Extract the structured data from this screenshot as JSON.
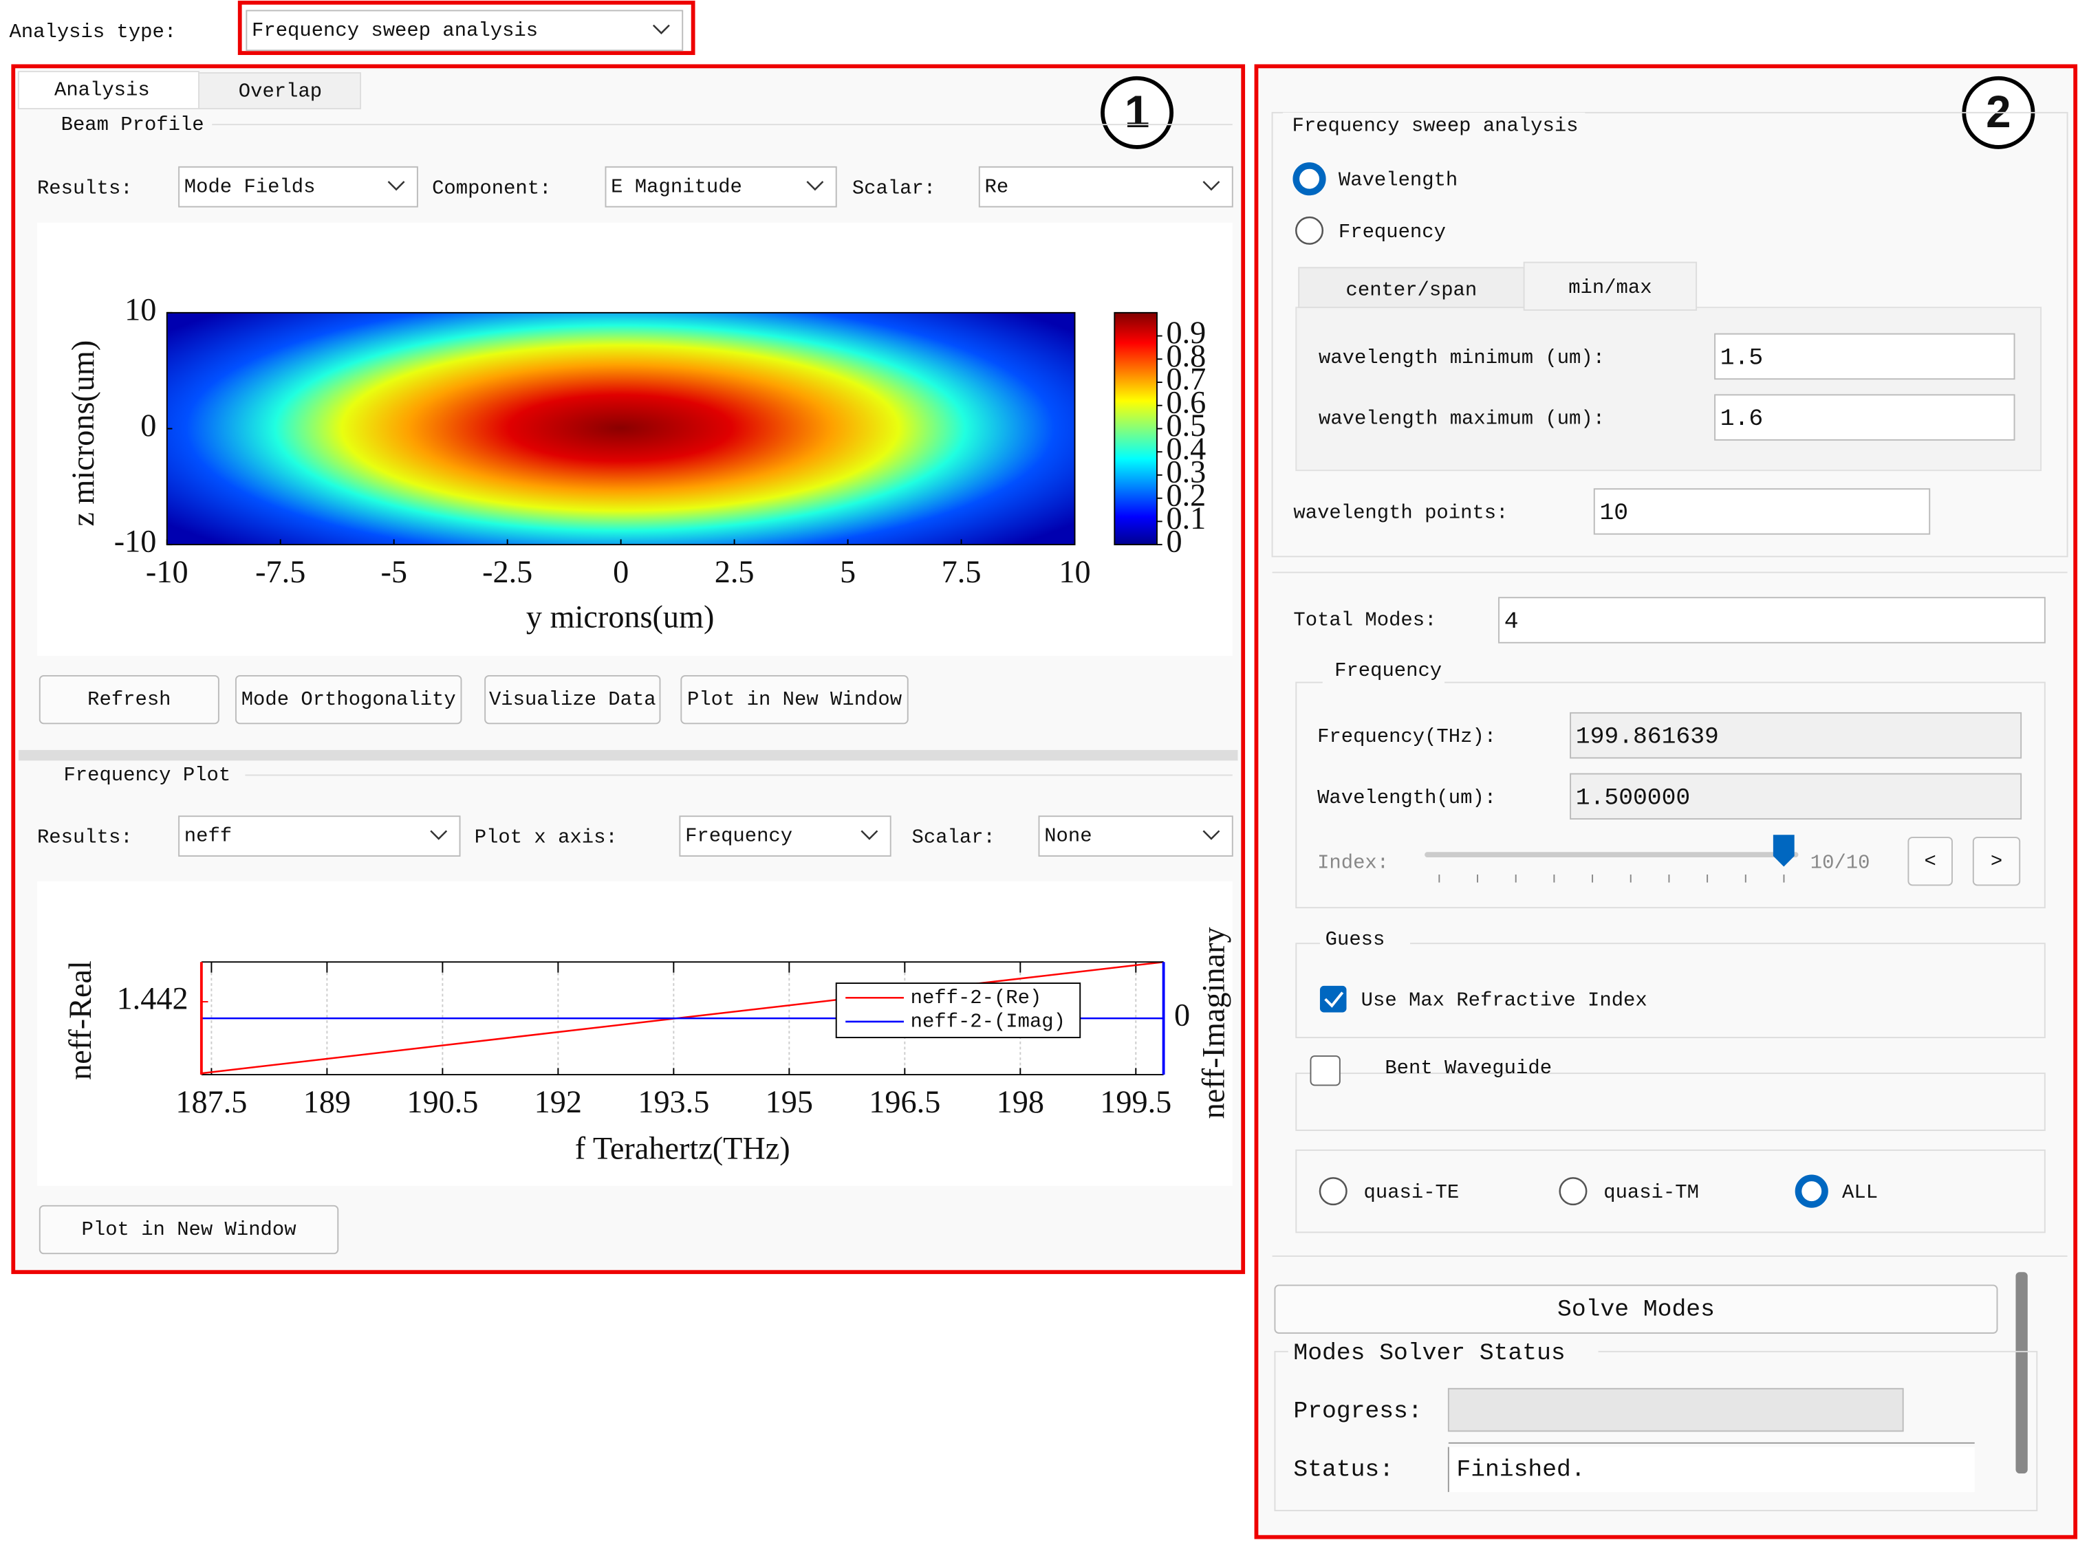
{
  "header": {
    "analysis_type_label": "Analysis type:",
    "analysis_type": "Frequency sweep analysis"
  },
  "callouts": [
    "1",
    "2"
  ],
  "left_panel": {
    "tabs": [
      "Analysis",
      "Overlap"
    ],
    "beam_profile": {
      "title": "Beam Profile",
      "results_label": "Results:",
      "results": "Mode Fields",
      "component_label": "Component:",
      "component": "E Magnitude",
      "scalar_label": "Scalar:",
      "scalar": "Re",
      "buttons": [
        "Refresh",
        "Mode Orthogonality",
        "Visualize Data",
        "Plot in New Window"
      ]
    },
    "frequency_plot": {
      "title": "Frequency Plot",
      "results_label": "Results:",
      "results": "neff",
      "x_axis_label": "Plot x axis:",
      "x_axis": "Frequency",
      "scalar_label": "Scalar:",
      "scalar": "None",
      "button": "Plot in New Window"
    }
  },
  "right_panel": {
    "sweep": {
      "title": "Frequency sweep analysis",
      "radios": [
        "Wavelength",
        "Frequency"
      ],
      "tabs": [
        "center/span",
        "min/max"
      ],
      "min_label": "wavelength minimum (um):",
      "min": "1.5",
      "max_label": "wavelength maximum (um):",
      "max": "1.6",
      "points_label": "wavelength points:",
      "points": "10"
    },
    "total_modes_label": "Total Modes:",
    "total_modes": "4",
    "frequency": {
      "title": "Frequency",
      "frequency_label": "Frequency(THz):",
      "frequency": "199.861639",
      "wavelength_label": "Wavelength(um):",
      "wavelength": "1.500000",
      "index_label": "Index:",
      "index": "10/10",
      "prev": "<",
      "next": ">"
    },
    "guess": {
      "title": "Guess",
      "checkbox": "Use Max Refractive Index"
    },
    "bent": "Bent Waveguide",
    "modes": [
      "quasi-TE",
      "quasi-TM",
      "ALL"
    ],
    "solve": "Solve Modes",
    "status": {
      "title": "Modes Solver Status",
      "progress_label": "Progress:",
      "status_label": "Status:",
      "status": "Finished."
    }
  },
  "chart_data": [
    {
      "type": "heatmap",
      "xlabel": "y microns(um)",
      "ylabel": "z microns(um)",
      "xlim": [
        -10,
        10
      ],
      "ylim": [
        -10,
        10
      ],
      "xticks": [
        -10,
        -7.5,
        -5,
        -2.5,
        0,
        2.5,
        5,
        7.5,
        10
      ],
      "yticks": [
        -10,
        0,
        10
      ],
      "colorbar_lim": [
        0,
        1
      ],
      "colorbar_ticks": [
        0,
        0.1,
        0.2,
        0.3,
        0.4,
        0.5,
        0.6,
        0.7,
        0.8,
        0.9
      ]
    },
    {
      "type": "line",
      "xlabel": "f Terahertz(THz)",
      "ylabel": "neff-Real",
      "y2label": "neff-Imaginary",
      "x": [
        187.37,
        199.86
      ],
      "series": [
        {
          "name": "neff-2-(Re)",
          "color": "#ff0000",
          "values": [
            1.4366,
            1.445
          ]
        },
        {
          "name": "neff-2-(Imag)",
          "color": "#0000ff",
          "axis": "y2",
          "values": [
            0,
            0
          ]
        }
      ],
      "xlim": [
        187.37,
        199.86
      ],
      "xticks": [
        187.5,
        189,
        190.5,
        192,
        193.5,
        195,
        196.5,
        198,
        199.5
      ],
      "ylim": [
        1.4365,
        1.445
      ],
      "yticks": [
        1.442
      ],
      "y2lim": [
        -1,
        1
      ],
      "y2ticks": [
        0
      ],
      "grid": true
    }
  ]
}
